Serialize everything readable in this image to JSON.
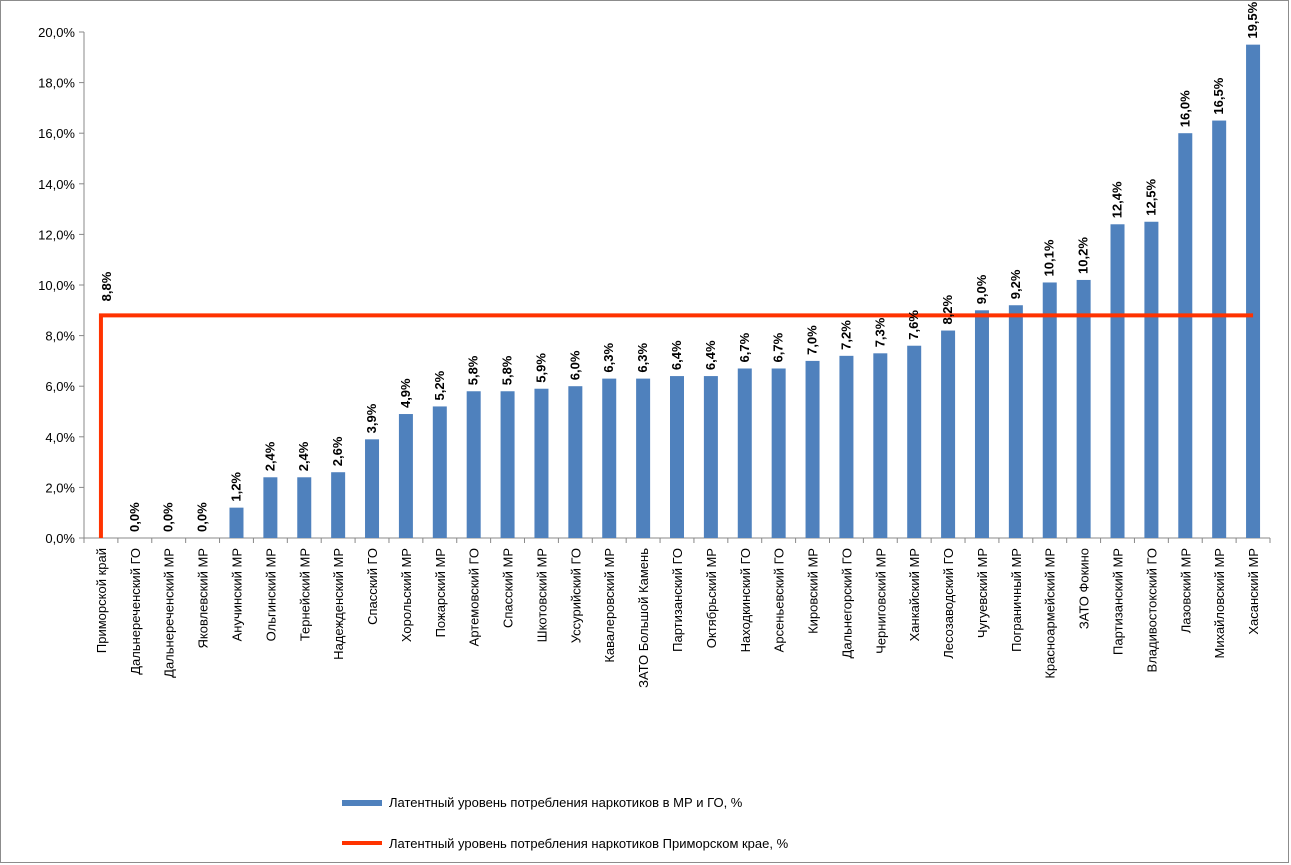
{
  "chart_data": {
    "type": "bar",
    "categories": [
      "Приморской  край",
      "Дальнереченский  ГО",
      "Дальнереченский  МР",
      "Яковлевский  МР",
      "Анучинский  МР",
      "Ольгинский  МР",
      "Тернейский  МР",
      "Надежденский  МР",
      "Спасский  ГО",
      "Хорольский  МР",
      "Пожарский  МР",
      "Артемовский  ГО",
      "Спасский  МР",
      "Шкотовский  МР",
      "Уссурийский  ГО",
      "Кавалеровский  МР",
      "ЗАТО Большой Камень",
      "Партизанский  ГО",
      "Октябрьский  МР",
      "Находкинский  ГО",
      "Арсеньевский  ГО",
      "Кировский  МР",
      "Дальнегорский  ГО",
      "Черниговский  МР",
      "Ханкайский  МР",
      "Лесозаводский  ГО",
      "Чугуевский  МР",
      "Пограничный  МР",
      "Красноармейский  МР",
      "ЗАТО  Фокино",
      "Партизанский  МР",
      "Владивостокский  ГО",
      "Лазовский  МР",
      "Михайловский  МР",
      "Хасанский  МР"
    ],
    "series": [
      {
        "name": "Латентный уровень потребления  наркотиков в МР и ГО, %",
        "type": "bar",
        "color": "#4f81bd",
        "values": [
          null,
          0.0,
          0.0,
          0.0,
          1.2,
          2.4,
          2.4,
          2.6,
          3.9,
          4.9,
          5.2,
          5.8,
          5.8,
          5.9,
          6.0,
          6.3,
          6.3,
          6.4,
          6.4,
          6.7,
          6.7,
          7.0,
          7.2,
          7.3,
          7.6,
          8.2,
          9.0,
          9.2,
          10.1,
          10.2,
          12.4,
          12.5,
          16.0,
          16.5,
          19.5
        ],
        "labels": [
          "",
          "0,0%",
          "0,0%",
          "0,0%",
          "1,2%",
          "2,4%",
          "2,4%",
          "2,6%",
          "3,9%",
          "4,9%",
          "5,2%",
          "5,8%",
          "5,8%",
          "5,9%",
          "6,0%",
          "6,3%",
          "6,3%",
          "6,4%",
          "6,4%",
          "6,7%",
          "6,7%",
          "7,0%",
          "7,2%",
          "7,3%",
          "7,6%",
          "8,2%",
          "9,0%",
          "9,2%",
          "10,1%",
          "10,2%",
          "12,4%",
          "12,5%",
          "16,0%",
          "16,5%",
          "19,5%"
        ]
      },
      {
        "name": "Латентный уровень потребления  наркотиков Приморском крае, %",
        "type": "line",
        "color": "#ff3300",
        "value": 8.8,
        "label": "8,8%"
      }
    ],
    "y_ticks": [
      "0,0%",
      "2,0%",
      "4,0%",
      "6,0%",
      "8,0%",
      "10,0%",
      "12,0%",
      "14,0%",
      "16,0%",
      "18,0%",
      "20,0%"
    ],
    "ylim": [
      0,
      20
    ],
    "ytick_step": 2,
    "grid": false,
    "legend_position": "bottom-left",
    "title": "",
    "xlabel": "",
    "ylabel": ""
  }
}
